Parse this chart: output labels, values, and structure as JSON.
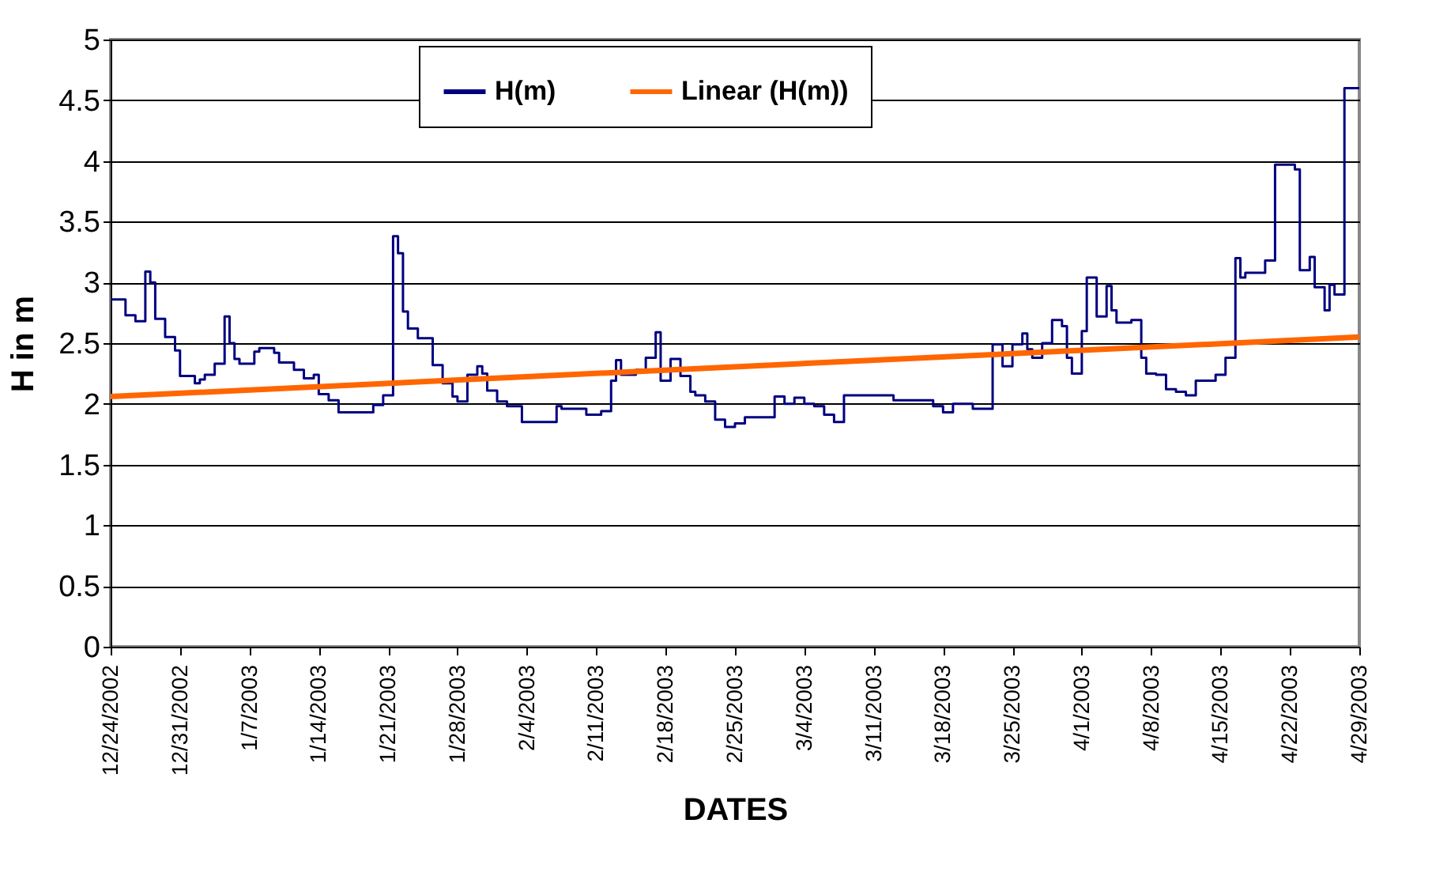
{
  "chart_data": {
    "type": "step",
    "xlabel": "DATES",
    "ylabel": "H in m",
    "ylim": [
      0,
      5
    ],
    "yticks": [
      0,
      0.5,
      1,
      1.5,
      2,
      2.5,
      3,
      3.5,
      4,
      4.5,
      5
    ],
    "xlim": [
      "2002-12-24",
      "2003-04-29"
    ],
    "xticks": [
      {
        "value": "2002-12-24",
        "label": "12/24/2002"
      },
      {
        "value": "2002-12-31",
        "label": "12/31/2002"
      },
      {
        "value": "2003-01-07",
        "label": "1/7/2003"
      },
      {
        "value": "2003-01-14",
        "label": "1/14/2003"
      },
      {
        "value": "2003-01-21",
        "label": "1/21/2003"
      },
      {
        "value": "2003-01-28",
        "label": "1/28/2003"
      },
      {
        "value": "2003-02-04",
        "label": "2/4/2003"
      },
      {
        "value": "2003-02-11",
        "label": "2/11/2003"
      },
      {
        "value": "2003-02-18",
        "label": "2/18/2003"
      },
      {
        "value": "2003-02-25",
        "label": "2/25/2003"
      },
      {
        "value": "2003-03-04",
        "label": "3/4/2003"
      },
      {
        "value": "2003-03-11",
        "label": "3/11/2003"
      },
      {
        "value": "2003-03-18",
        "label": "3/18/2003"
      },
      {
        "value": "2003-03-25",
        "label": "3/25/2003"
      },
      {
        "value": "2003-04-01",
        "label": "4/1/2003"
      },
      {
        "value": "2003-04-08",
        "label": "4/8/2003"
      },
      {
        "value": "2003-04-15",
        "label": "4/15/2003"
      },
      {
        "value": "2003-04-22",
        "label": "4/22/2003"
      },
      {
        "value": "2003-04-29",
        "label": "4/29/2003"
      }
    ],
    "grid": "y",
    "legend": "top",
    "series": [
      {
        "name": "H(m)",
        "color": "#000080",
        "type": "step",
        "x": [
          "2002-12-24",
          "2002-12-25T12:00",
          "2002-12-26T12:00",
          "2002-12-27T12:00",
          "2002-12-28",
          "2002-12-28T12:00",
          "2002-12-29T12:00",
          "2002-12-30T12:00",
          "2002-12-31",
          "2003-01-01T12:00",
          "2003-01-02",
          "2003-01-02T12:00",
          "2003-01-03T12:00",
          "2003-01-04T12:00",
          "2003-01-05",
          "2003-01-05T12:00",
          "2003-01-06",
          "2003-01-07T12:00",
          "2003-01-08",
          "2003-01-09T12:00",
          "2003-01-10",
          "2003-01-11T12:00",
          "2003-01-12T12:00",
          "2003-01-13T12:00",
          "2003-01-14",
          "2003-01-15",
          "2003-01-16",
          "2003-01-19T12:00",
          "2003-01-20T12:00",
          "2003-01-21T12:00",
          "2003-01-22",
          "2003-01-22T12:00",
          "2003-01-23",
          "2003-01-24",
          "2003-01-25T12:00",
          "2003-01-26T12:00",
          "2003-01-27T12:00",
          "2003-01-28",
          "2003-01-29",
          "2003-01-30",
          "2003-01-30T12:00",
          "2003-01-31",
          "2003-02-01",
          "2003-02-02",
          "2003-02-03T12:00",
          "2003-02-07",
          "2003-02-07T12:00",
          "2003-02-10",
          "2003-02-11T12:00",
          "2003-02-12T12:00",
          "2003-02-13",
          "2003-02-13T12:00",
          "2003-02-15",
          "2003-02-16",
          "2003-02-17",
          "2003-02-17T12:00",
          "2003-02-18T12:00",
          "2003-02-19T12:00",
          "2003-02-20T12:00",
          "2003-02-21",
          "2003-02-22",
          "2003-02-23",
          "2003-02-24",
          "2003-02-25",
          "2003-02-26",
          "2003-03-01",
          "2003-03-02",
          "2003-03-03",
          "2003-03-04",
          "2003-03-05",
          "2003-03-06",
          "2003-03-07",
          "2003-03-08",
          "2003-03-13",
          "2003-03-17",
          "2003-03-18",
          "2003-03-19",
          "2003-03-21",
          "2003-03-23",
          "2003-03-24",
          "2003-03-25",
          "2003-03-26",
          "2003-03-26T12:00",
          "2003-03-27",
          "2003-03-28",
          "2003-03-29",
          "2003-03-30",
          "2003-03-30T12:00",
          "2003-03-31",
          "2003-04-01",
          "2003-04-01T12:00",
          "2003-04-02T12:00",
          "2003-04-03T12:00",
          "2003-04-04",
          "2003-04-04T12:00",
          "2003-04-06",
          "2003-04-07",
          "2003-04-07T12:00",
          "2003-04-08T12:00",
          "2003-04-09T12:00",
          "2003-04-10T12:00",
          "2003-04-11T12:00",
          "2003-04-12T12:00",
          "2003-04-14T12:00",
          "2003-04-15T12:00",
          "2003-04-16T12:00",
          "2003-04-17",
          "2003-04-17T12:00",
          "2003-04-19T12:00",
          "2003-04-20T12:00",
          "2003-04-22T12:00",
          "2003-04-23",
          "2003-04-24",
          "2003-04-24T12:00",
          "2003-04-25T12:00",
          "2003-04-26",
          "2003-04-26T12:00",
          "2003-04-27T12:00",
          "2003-04-29"
        ],
        "values": [
          2.86,
          2.73,
          2.68,
          3.09,
          3.0,
          2.7,
          2.55,
          2.44,
          2.23,
          2.17,
          2.2,
          2.24,
          2.33,
          2.72,
          2.5,
          2.37,
          2.33,
          2.43,
          2.46,
          2.42,
          2.34,
          2.28,
          2.21,
          2.24,
          2.08,
          2.03,
          1.93,
          1.99,
          2.07,
          3.38,
          3.24,
          2.76,
          2.62,
          2.54,
          2.32,
          2.17,
          2.06,
          2.02,
          2.24,
          2.31,
          2.25,
          2.11,
          2.02,
          1.98,
          1.85,
          1.98,
          1.96,
          1.91,
          1.94,
          2.19,
          2.36,
          2.24,
          2.28,
          2.38,
          2.59,
          2.19,
          2.37,
          2.23,
          2.1,
          2.07,
          2.02,
          1.87,
          1.81,
          1.84,
          1.89,
          2.06,
          2.0,
          2.05,
          2.0,
          1.98,
          1.91,
          1.85,
          2.07,
          2.03,
          1.98,
          1.93,
          2.0,
          1.96,
          2.49,
          2.31,
          2.49,
          2.58,
          2.45,
          2.38,
          2.5,
          2.69,
          2.64,
          2.38,
          2.25,
          2.6,
          3.04,
          2.72,
          2.97,
          2.77,
          2.67,
          2.69,
          2.38,
          2.25,
          2.24,
          2.12,
          2.1,
          2.07,
          2.19,
          2.24,
          2.38,
          3.2,
          3.04,
          3.08,
          3.18,
          3.97,
          3.93,
          3.1,
          3.21,
          2.96,
          2.77,
          2.98,
          2.9,
          4.6,
          4.6
        ]
      },
      {
        "name": "Linear (H(m))",
        "color": "#ff6600",
        "type": "line",
        "x": [
          "2002-12-24",
          "2003-04-29"
        ],
        "values": [
          2.06,
          2.55
        ]
      }
    ]
  }
}
